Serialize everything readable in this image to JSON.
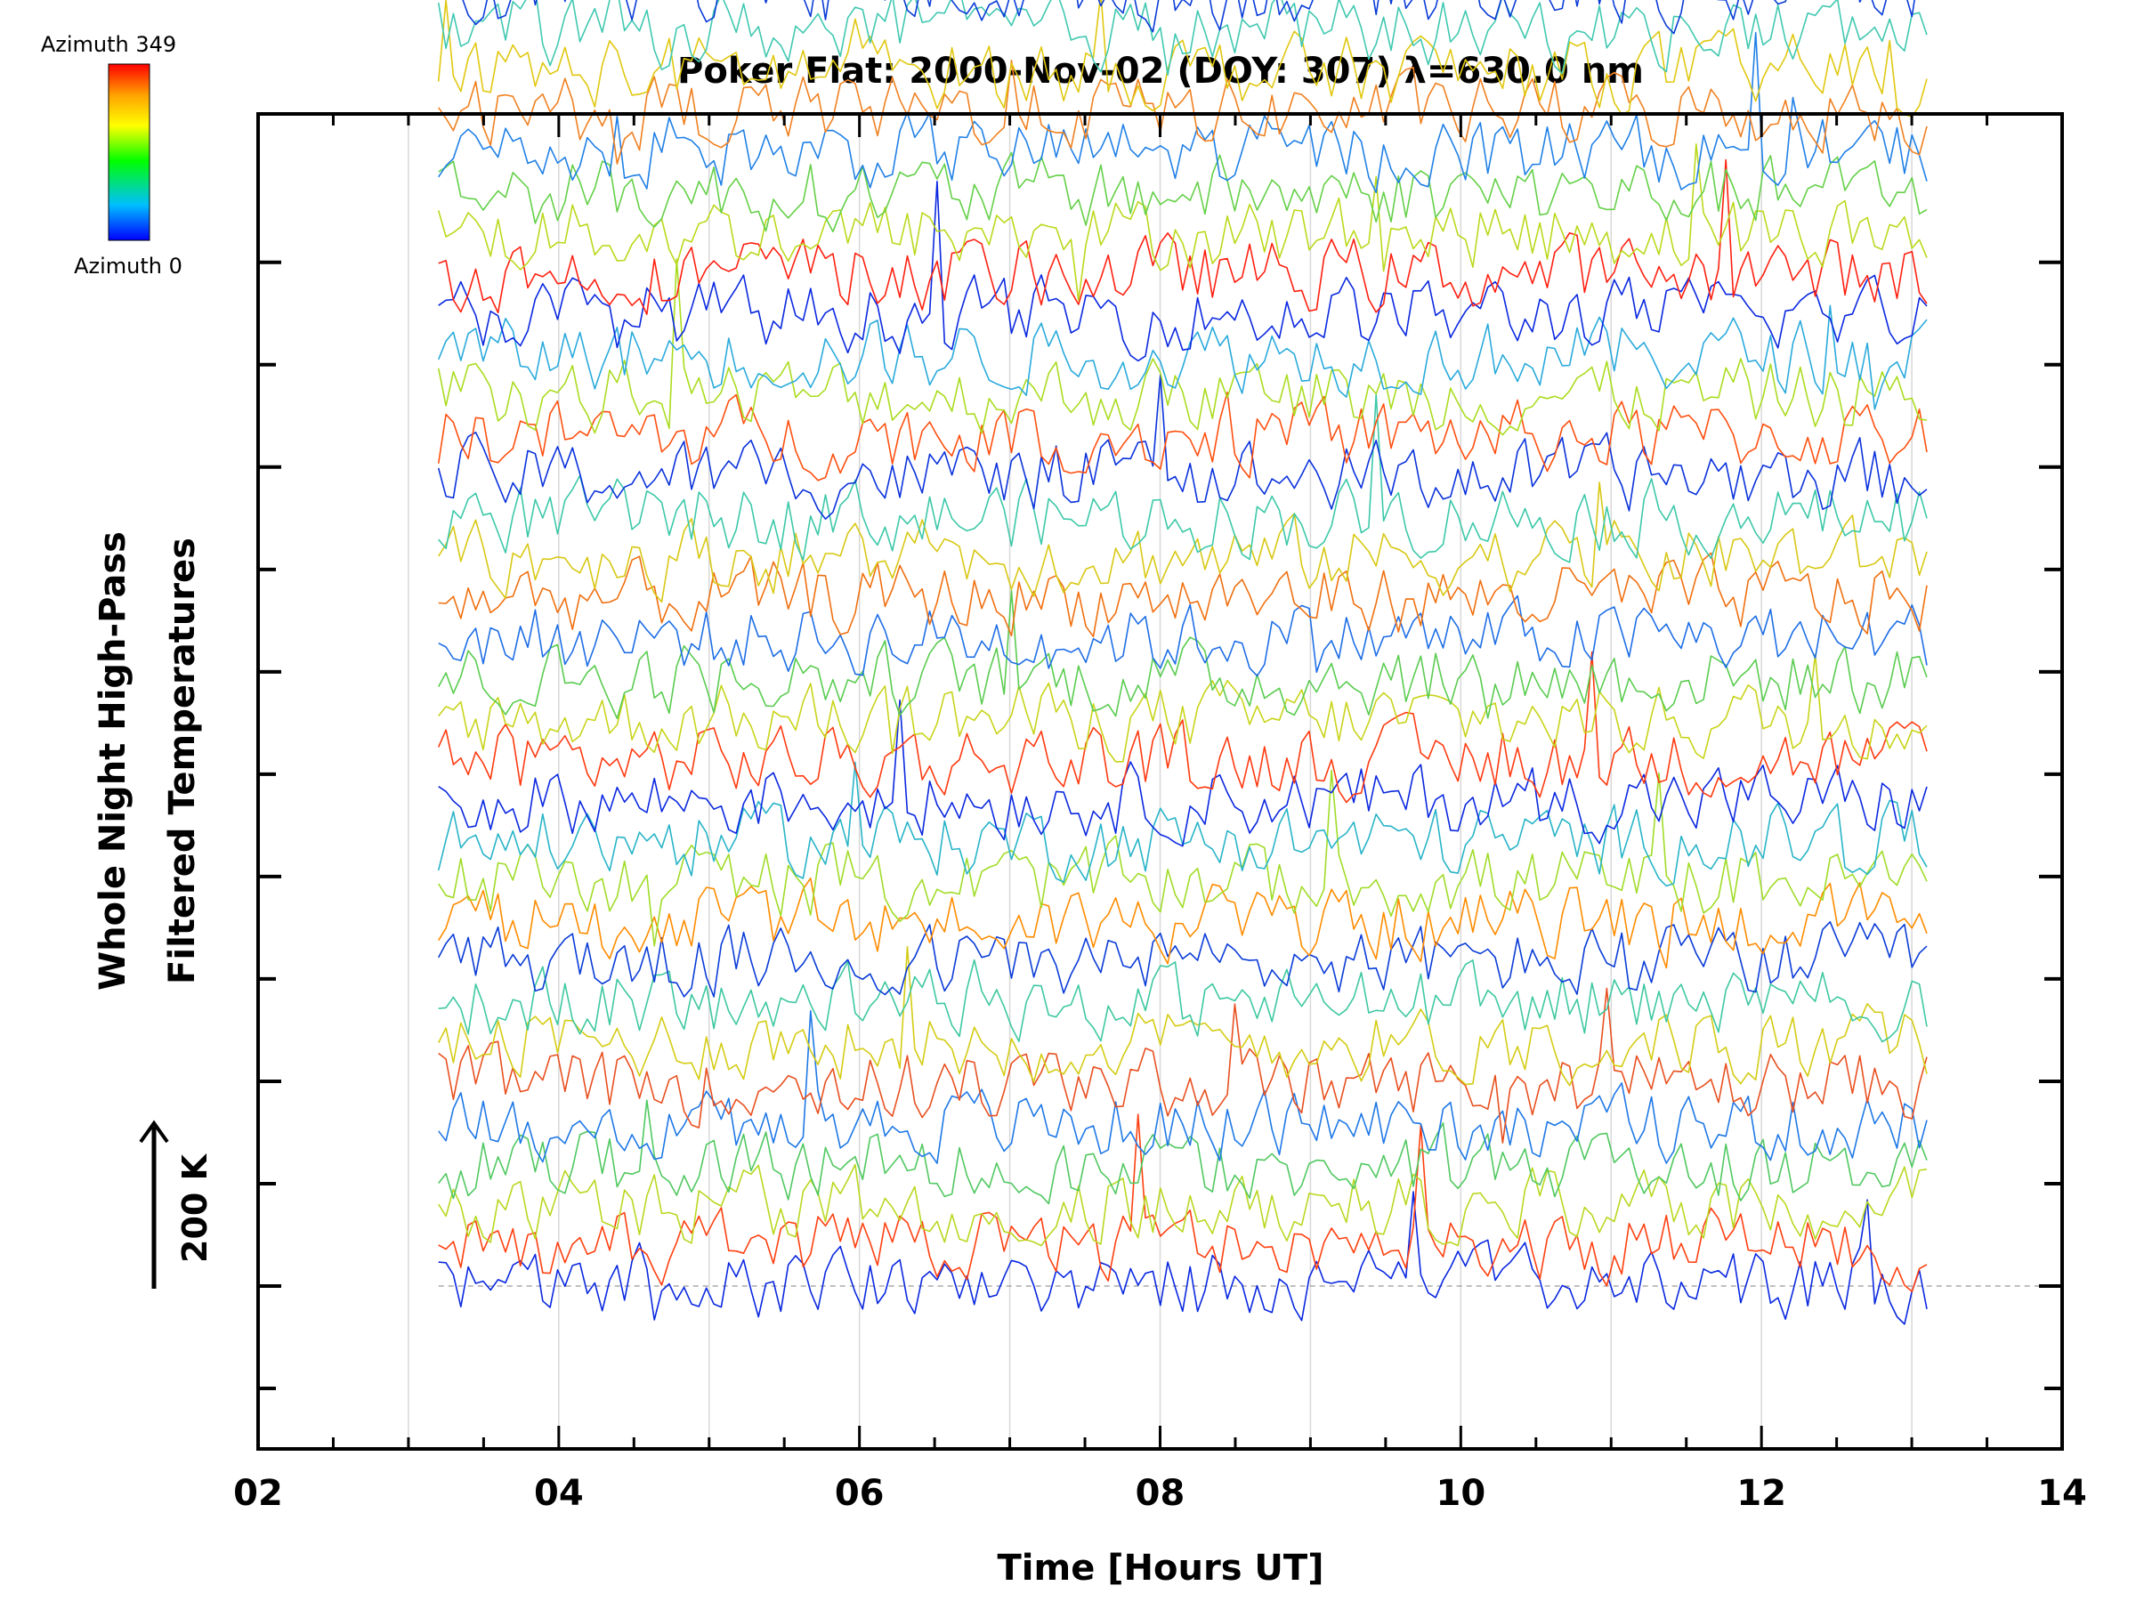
{
  "chart_data": {
    "type": "line",
    "title": "Poker Flat: 2000-Nov-02 (DOY: 307) λ=630.0 nm",
    "xlabel": "Time [Hours UT]",
    "ylabel_lines": [
      "Whole Night High-Pass",
      "Filtered Temperatures"
    ],
    "scale_label": "200 K",
    "colorbar": {
      "top_label": "Azimuth 349",
      "bottom_label": "Azimuth 0",
      "colormap": "rainbow",
      "colors": [
        "#ff0000",
        "#ffa500",
        "#ffff00",
        "#00ff00",
        "#00bfff",
        "#0000ff"
      ]
    },
    "xlim": [
      2,
      14
    ],
    "x_ticks": [
      "02",
      "04",
      "06",
      "08",
      "10",
      "12",
      "14"
    ],
    "x_data_range": [
      3.2,
      13.1
    ],
    "grid": true,
    "series_count": 48,
    "series_spacing_K": 50,
    "noise_amplitude_K": 25,
    "series_colors": [
      "#0a28e0",
      "#ff4010",
      "#b8d820",
      "#50c860",
      "#1e78e6",
      "#e85020",
      "#d4cc14",
      "#3ec8a0",
      "#0a3cd8",
      "#ff8c00",
      "#a0dc28",
      "#28b4c8",
      "#0a28e0",
      "#ff3a10",
      "#c8d41a",
      "#5acc50",
      "#1e6ee6",
      "#f07010",
      "#d8c814",
      "#3cc8a8",
      "#0a32dc",
      "#ff5010",
      "#aadc20",
      "#2aaadc",
      "#0a28e0",
      "#ff2010",
      "#bcd81c",
      "#64d048",
      "#2080e6",
      "#f08020",
      "#e0c810",
      "#40c8b0",
      "#0a3cd8",
      "#ff3c10",
      "#b0da20",
      "#30a0e0",
      "#0a28e0",
      "#ff6010",
      "#c4d618",
      "#5ccc58",
      "#1a78e8",
      "#f48c10",
      "#dcc810",
      "#40c0b8",
      "#2a5ee0",
      "#1a50e8",
      "#3890e8",
      "#40a0e8"
    ]
  }
}
